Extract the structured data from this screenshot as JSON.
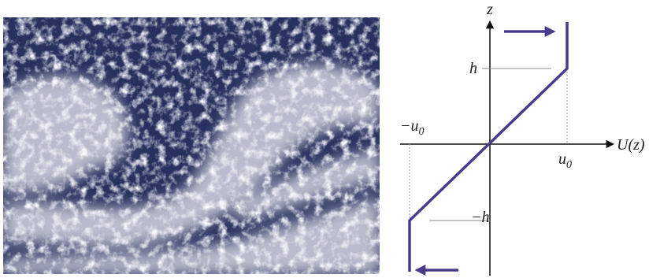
{
  "diagram": {
    "axes": {
      "vertical": "z",
      "horizontal": "U(z)"
    },
    "labels": {
      "h": "h",
      "minus_h": "−h",
      "u0": {
        "base": "u",
        "subscript": "0"
      },
      "minus_u0": {
        "base": "−u",
        "subscript": "0"
      }
    }
  }
}
